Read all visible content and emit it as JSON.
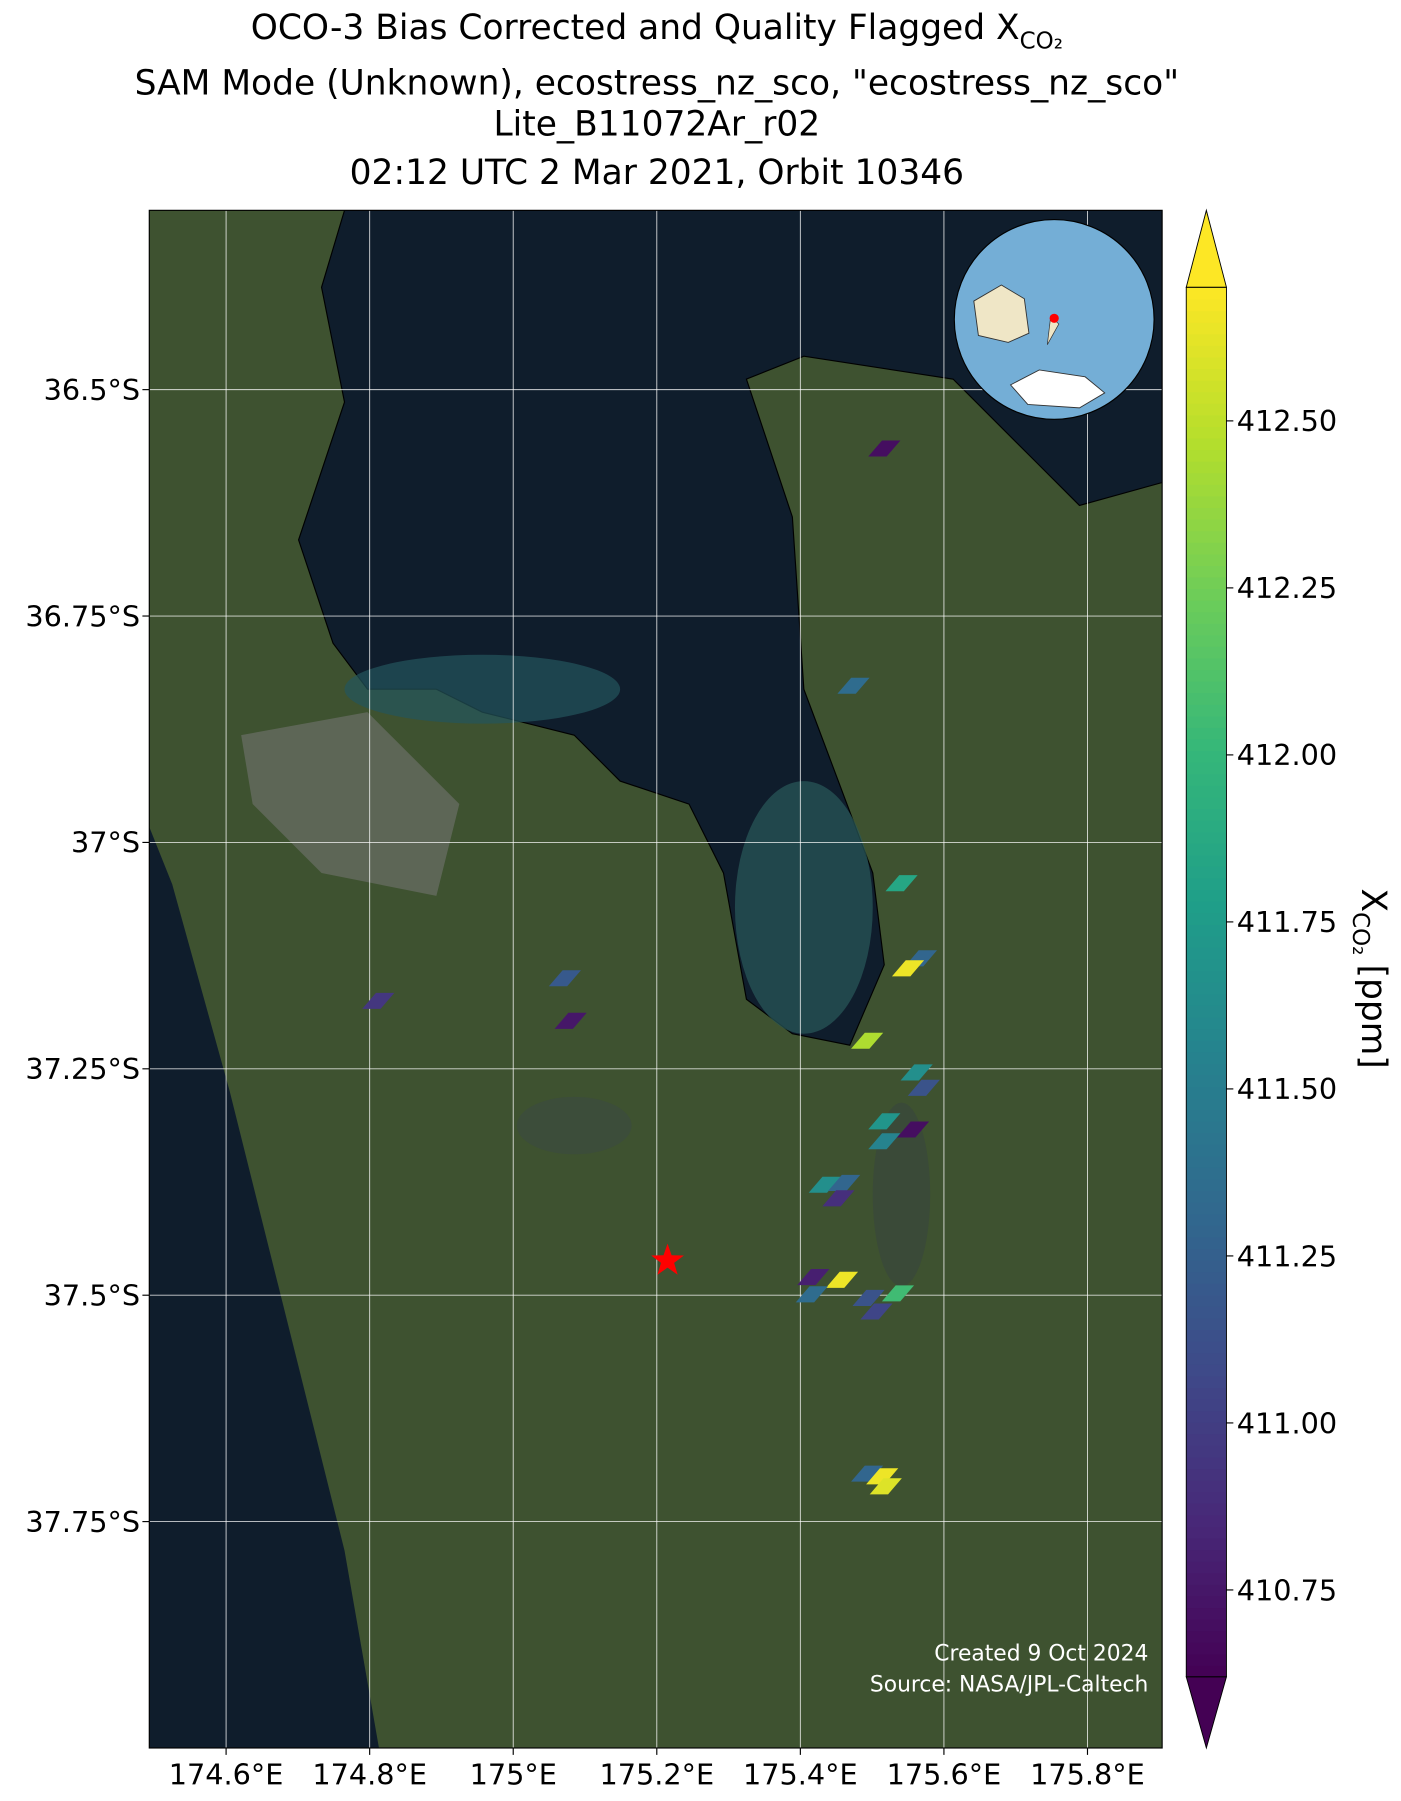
{
  "chart_data": {
    "type": "map",
    "title": {
      "text": "OCO-3 Bias Corrected and Quality Flagged X",
      "subscript": "CO₂"
    },
    "subtitle": [
      "SAM Mode (Unknown), ecostress_nz_sco, \"ecostress_nz_sco\"",
      "Lite_B11072Ar_r02",
      "02:12 UTC 2 Mar 2021, Orbit 10346"
    ],
    "xlim": [
      174.493,
      175.904
    ],
    "ylim": [
      -38.0,
      -36.302
    ],
    "xticks": [
      {
        "value": 174.6,
        "label": "174.6°E"
      },
      {
        "value": 174.8,
        "label": "174.8°E"
      },
      {
        "value": 175.0,
        "label": "175°E"
      },
      {
        "value": 175.2,
        "label": "175.2°E"
      },
      {
        "value": 175.4,
        "label": "175.4°E"
      },
      {
        "value": 175.6,
        "label": "175.6°E"
      },
      {
        "value": 175.8,
        "label": "175.8°E"
      }
    ],
    "yticks": [
      {
        "value": -36.5,
        "label": "36.5°S"
      },
      {
        "value": -36.75,
        "label": "36.75°S"
      },
      {
        "value": -37.0,
        "label": "37°S"
      },
      {
        "value": -37.25,
        "label": "37.25°S"
      },
      {
        "value": -37.5,
        "label": "37.5°S"
      },
      {
        "value": -37.75,
        "label": "37.75°S"
      }
    ],
    "grid": true,
    "x": [
      175.517,
      175.474,
      175.541,
      175.568,
      175.55,
      175.072,
      174.812,
      175.08,
      175.493,
      175.562,
      175.572,
      175.517,
      175.557,
      175.517,
      175.434,
      175.461,
      175.453,
      175.418,
      175.458,
      175.416,
      175.495,
      175.536,
      175.506,
      175.493,
      175.514,
      175.519
    ],
    "y": [
      -36.565,
      -36.827,
      -37.045,
      -37.128,
      -37.139,
      -37.15,
      -37.175,
      -37.197,
      -37.219,
      -37.254,
      -37.271,
      -37.308,
      -37.317,
      -37.33,
      -37.378,
      -37.376,
      -37.393,
      -37.48,
      -37.483,
      -37.499,
      -37.503,
      -37.498,
      -37.518,
      -37.697,
      -37.7,
      -37.711
    ],
    "values": [
      410.7,
      411.35,
      411.85,
      411.3,
      412.65,
      411.2,
      410.95,
      410.75,
      412.45,
      411.65,
      411.15,
      411.7,
      410.7,
      411.55,
      411.65,
      411.3,
      410.9,
      410.8,
      412.65,
      411.35,
      411.15,
      412.05,
      411.05,
      411.3,
      412.65,
      412.6
    ],
    "colormap": "viridis",
    "clim": [
      410.62,
      412.7
    ],
    "cticks": [
      {
        "value": 410.75,
        "label": "410.75"
      },
      {
        "value": 411.0,
        "label": "411.00"
      },
      {
        "value": 411.25,
        "label": "411.25"
      },
      {
        "value": 411.5,
        "label": "411.50"
      },
      {
        "value": 411.75,
        "label": "411.75"
      },
      {
        "value": 412.0,
        "label": "412.00"
      },
      {
        "value": 412.25,
        "label": "412.25"
      },
      {
        "value": 412.5,
        "label": "412.50"
      }
    ],
    "colorbar_label": {
      "text": "X",
      "subscript": "CO₂",
      "unit": "[ppm]"
    },
    "site": {
      "x": 175.215,
      "y": -37.462,
      "color": "#ff0000"
    },
    "credits": [
      "Created 9 Oct 2024",
      "Source: NASA/JPL-Caltech"
    ]
  }
}
